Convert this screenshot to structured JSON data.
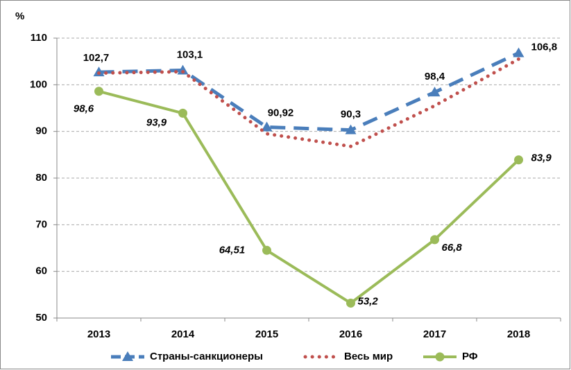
{
  "chart_data": {
    "type": "line",
    "y_label": "%",
    "categories": [
      "2013",
      "2014",
      "2015",
      "2016",
      "2017",
      "2018"
    ],
    "series": [
      {
        "name": "Страны-санкционеры",
        "color": "#4a7ebb",
        "values": [
          102.7,
          103.1,
          90.92,
          90.3,
          98.4,
          106.8
        ],
        "value_labels": [
          "102,7",
          "103,1",
          "90,92",
          "90,3",
          "98,4",
          "106,8"
        ]
      },
      {
        "name": "Весь мир",
        "color": "#c0504d",
        "values": [
          102.5,
          102.8,
          89.5,
          86.8,
          95.5,
          105.5
        ]
      },
      {
        "name": "РФ",
        "color": "#9bbb59",
        "values": [
          98.6,
          93.9,
          64.51,
          53.2,
          66.8,
          83.9
        ],
        "value_labels": [
          "98,6",
          "93,9",
          "64,51",
          "53,2",
          "66,8",
          "83,9"
        ]
      }
    ],
    "ylim": [
      50,
      110
    ],
    "yticks": [
      50,
      60,
      70,
      80,
      90,
      100,
      110
    ],
    "grid": true
  }
}
